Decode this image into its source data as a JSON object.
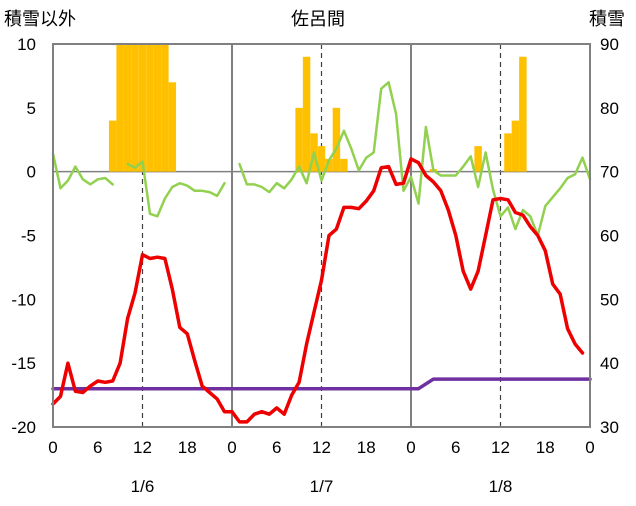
{
  "chart_data": {
    "type": "line",
    "title": "佐呂間",
    "left_axis_label": "積雪以外",
    "right_axis_label": "積雪",
    "x_unit": "hour",
    "xlim": [
      0,
      72
    ],
    "ylim_left": [
      -20,
      10
    ],
    "yticks_left": [
      "10",
      "5",
      "0",
      "-5",
      "-10",
      "-15",
      "-20"
    ],
    "ylim_right": [
      30,
      90
    ],
    "yticks_right": [
      "90",
      "80",
      "70",
      "60",
      "50",
      "40",
      "30"
    ],
    "x_tick_labels": [
      "0",
      "6",
      "12",
      "18",
      "0",
      "6",
      "12",
      "18",
      "0",
      "6",
      "12",
      "18",
      "0"
    ],
    "x_tick_hours": [
      0,
      6,
      12,
      18,
      24,
      30,
      36,
      42,
      48,
      54,
      60,
      66,
      72
    ],
    "day_labels": [
      {
        "text": "1/6",
        "hour": 12
      },
      {
        "text": "1/7",
        "hour": 36
      },
      {
        "text": "1/8",
        "hour": 60
      }
    ],
    "grid": "vertical lines at day boundaries (solid) and noon (dashed)",
    "colors": {
      "temperature": "#ee0000",
      "precipitation": "#ffc000",
      "wind": "#92d050",
      "snow_depth": "#7030a0",
      "axis": "#808080"
    },
    "series": [
      {
        "key": "precipitation",
        "kind": "bar",
        "axis": "left",
        "points": [
          [
            8,
            4
          ],
          [
            9,
            10
          ],
          [
            10,
            10
          ],
          [
            11,
            10
          ],
          [
            12,
            10
          ],
          [
            13,
            10
          ],
          [
            14,
            10
          ],
          [
            15,
            10
          ],
          [
            16,
            7
          ],
          [
            33,
            5
          ],
          [
            34,
            9
          ],
          [
            35,
            3
          ],
          [
            36,
            2
          ],
          [
            37,
            1
          ],
          [
            38,
            5
          ],
          [
            39,
            1
          ],
          [
            51,
            0.2
          ],
          [
            57,
            2
          ],
          [
            61,
            3
          ],
          [
            62,
            4
          ],
          [
            63,
            9
          ]
        ]
      },
      {
        "key": "temperature",
        "kind": "line",
        "axis": "left",
        "points": [
          [
            0,
            -18.2
          ],
          [
            1,
            -17.6
          ],
          [
            2,
            -15
          ],
          [
            3,
            -17.2
          ],
          [
            4,
            -17.3
          ],
          [
            5,
            -16.8
          ],
          [
            6,
            -16.4
          ],
          [
            7,
            -16.5
          ],
          [
            8,
            -16.4
          ],
          [
            9,
            -15
          ],
          [
            10,
            -11.5
          ],
          [
            11,
            -9.5
          ],
          [
            12,
            -6.5
          ],
          [
            13,
            -6.8
          ],
          [
            14,
            -6.7
          ],
          [
            15,
            -6.8
          ],
          [
            16,
            -9.2
          ],
          [
            17,
            -12.2
          ],
          [
            18,
            -12.7
          ],
          [
            19,
            -14.8
          ],
          [
            20,
            -16.8
          ],
          [
            21,
            -17.3
          ],
          [
            22,
            -17.8
          ],
          [
            23,
            -18.8
          ],
          [
            24,
            -18.8
          ],
          [
            25,
            -19.6
          ],
          [
            26,
            -19.6
          ],
          [
            27,
            -19
          ],
          [
            28,
            -18.8
          ],
          [
            29,
            -19
          ],
          [
            30,
            -18.5
          ],
          [
            31,
            -19
          ],
          [
            32,
            -17.5
          ],
          [
            33,
            -16.5
          ],
          [
            34,
            -13.5
          ],
          [
            35,
            -11
          ],
          [
            36,
            -8.5
          ],
          [
            37,
            -5
          ],
          [
            38,
            -4.5
          ],
          [
            39,
            -2.8
          ],
          [
            40,
            -2.8
          ],
          [
            41,
            -2.9
          ],
          [
            42,
            -2.3
          ],
          [
            43,
            -1.5
          ],
          [
            44,
            0.3
          ],
          [
            45,
            0.4
          ],
          [
            46,
            -1
          ],
          [
            47,
            -0.9
          ],
          [
            48,
            1
          ],
          [
            49,
            0.7
          ],
          [
            50,
            -0.3
          ],
          [
            51,
            -0.8
          ],
          [
            52,
            -1.5
          ],
          [
            53,
            -3
          ],
          [
            54,
            -5
          ],
          [
            55,
            -7.8
          ],
          [
            56,
            -9.2
          ],
          [
            57,
            -7.8
          ],
          [
            58,
            -5
          ],
          [
            59,
            -2.2
          ],
          [
            60,
            -2.1
          ],
          [
            61,
            -2.2
          ],
          [
            62,
            -3.2
          ],
          [
            63,
            -3.4
          ],
          [
            64,
            -4.3
          ],
          [
            65,
            -5
          ],
          [
            66,
            -6.2
          ],
          [
            67,
            -8.8
          ],
          [
            68,
            -9.6
          ],
          [
            69,
            -12.3
          ],
          [
            70,
            -13.5
          ],
          [
            71,
            -14.2
          ]
        ]
      },
      {
        "key": "wind",
        "kind": "line",
        "axis": "left",
        "points": [
          [
            0,
            1.4
          ],
          [
            1,
            -1.3
          ],
          [
            2,
            -0.7
          ],
          [
            3,
            0.4
          ],
          [
            4,
            -0.6
          ],
          [
            5,
            -1
          ],
          [
            6,
            -0.6
          ],
          [
            7,
            -0.5
          ],
          [
            8,
            -1
          ],
          null,
          [
            10,
            0.6
          ],
          [
            11,
            0.3
          ],
          [
            12,
            0.8
          ],
          [
            13,
            -3.3
          ],
          [
            14,
            -3.5
          ],
          [
            15,
            -2.1
          ],
          [
            16,
            -1.2
          ],
          [
            17,
            -0.9
          ],
          [
            18,
            -1.1
          ],
          [
            19,
            -1.5
          ],
          [
            20,
            -1.5
          ],
          [
            21,
            -1.6
          ],
          [
            22,
            -1.9
          ],
          [
            23,
            -0.9
          ],
          null,
          [
            25,
            0.6
          ],
          [
            26,
            -1
          ],
          [
            27,
            -1
          ],
          [
            28,
            -1.2
          ],
          [
            29,
            -1.6
          ],
          [
            30,
            -0.9
          ],
          [
            31,
            -1.3
          ],
          [
            32,
            -0.6
          ],
          [
            33,
            0.4
          ],
          [
            34,
            -0.9
          ],
          [
            35,
            1.5
          ],
          [
            36,
            -0.7
          ],
          [
            37,
            0.9
          ],
          [
            38,
            1.8
          ],
          [
            39,
            3.2
          ],
          [
            40,
            1.8
          ],
          [
            41,
            0.1
          ],
          [
            42,
            1.1
          ],
          [
            43,
            1.5
          ],
          [
            44,
            6.5
          ],
          [
            45,
            7
          ],
          [
            46,
            4.5
          ],
          [
            47,
            -1.5
          ],
          [
            48,
            -0.4
          ],
          [
            49,
            -2.5
          ],
          [
            50,
            3.5
          ],
          [
            51,
            0.1
          ],
          [
            52,
            -0.3
          ],
          [
            53,
            -0.3
          ],
          [
            54,
            -0.3
          ],
          [
            55,
            0.4
          ],
          [
            56,
            1.2
          ],
          [
            57,
            -1.2
          ],
          [
            58,
            1.5
          ],
          [
            59,
            -1.4
          ],
          [
            60,
            -3.5
          ],
          [
            61,
            -2.8
          ],
          [
            62,
            -4.5
          ],
          [
            63,
            -3
          ],
          [
            64,
            -3.5
          ],
          [
            65,
            -5
          ],
          [
            66,
            -2.7
          ],
          [
            67,
            -2
          ],
          [
            68,
            -1.3
          ],
          [
            69,
            -0.5
          ],
          [
            70,
            -0.2
          ],
          [
            71,
            1.1
          ],
          [
            72,
            -0.6
          ]
        ]
      },
      {
        "key": "snow_depth",
        "kind": "line",
        "axis": "right",
        "points": [
          [
            0,
            36
          ],
          [
            49,
            36
          ],
          [
            51,
            37.5
          ],
          [
            72,
            37.5
          ]
        ]
      }
    ]
  }
}
